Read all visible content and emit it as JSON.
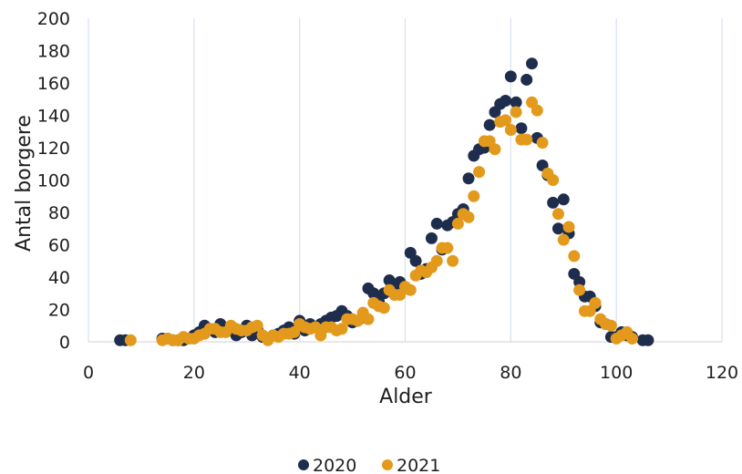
{
  "chart_data": {
    "type": "scatter",
    "title": "",
    "xlabel": "Alder",
    "ylabel": "Antal borgere",
    "xlim": [
      0,
      120
    ],
    "ylim": [
      0,
      200
    ],
    "x_ticks": [
      0,
      20,
      40,
      60,
      80,
      100,
      120
    ],
    "y_ticks": [
      0,
      20,
      40,
      60,
      80,
      100,
      120,
      140,
      160,
      180,
      200
    ],
    "grid": "vertical",
    "legend_position": "bottom",
    "series": [
      {
        "name": "2020",
        "color": "#1f2d4d",
        "points": [
          [
            6,
            1
          ],
          [
            7,
            1
          ],
          [
            14,
            2
          ],
          [
            15,
            2
          ],
          [
            16,
            1
          ],
          [
            17,
            1
          ],
          [
            18,
            1
          ],
          [
            19,
            2
          ],
          [
            20,
            4
          ],
          [
            21,
            6
          ],
          [
            22,
            10
          ],
          [
            23,
            8
          ],
          [
            24,
            6
          ],
          [
            25,
            11
          ],
          [
            26,
            8
          ],
          [
            27,
            7
          ],
          [
            28,
            4
          ],
          [
            29,
            6
          ],
          [
            30,
            10
          ],
          [
            31,
            4
          ],
          [
            32,
            8
          ],
          [
            33,
            3
          ],
          [
            34,
            2
          ],
          [
            35,
            4
          ],
          [
            36,
            5
          ],
          [
            37,
            7
          ],
          [
            38,
            9
          ],
          [
            39,
            5
          ],
          [
            40,
            13
          ],
          [
            41,
            7
          ],
          [
            42,
            11
          ],
          [
            43,
            9
          ],
          [
            44,
            11
          ],
          [
            45,
            13
          ],
          [
            46,
            15
          ],
          [
            47,
            16
          ],
          [
            48,
            19
          ],
          [
            49,
            16
          ],
          [
            50,
            12
          ],
          [
            51,
            13
          ],
          [
            52,
            15
          ],
          [
            53,
            33
          ],
          [
            54,
            30
          ],
          [
            55,
            25
          ],
          [
            56,
            30
          ],
          [
            57,
            38
          ],
          [
            58,
            33
          ],
          [
            59,
            37
          ],
          [
            60,
            33
          ],
          [
            61,
            55
          ],
          [
            62,
            50
          ],
          [
            63,
            42
          ],
          [
            64,
            45
          ],
          [
            65,
            64
          ],
          [
            66,
            73
          ],
          [
            67,
            57
          ],
          [
            68,
            72
          ],
          [
            69,
            74
          ],
          [
            70,
            79
          ],
          [
            71,
            82
          ],
          [
            72,
            101
          ],
          [
            73,
            115
          ],
          [
            74,
            119
          ],
          [
            75,
            120
          ],
          [
            76,
            134
          ],
          [
            77,
            142
          ],
          [
            78,
            147
          ],
          [
            79,
            149
          ],
          [
            80,
            164
          ],
          [
            81,
            148
          ],
          [
            82,
            132
          ],
          [
            83,
            162
          ],
          [
            84,
            172
          ],
          [
            85,
            126
          ],
          [
            86,
            109
          ],
          [
            87,
            103
          ],
          [
            88,
            86
          ],
          [
            89,
            70
          ],
          [
            90,
            88
          ],
          [
            91,
            67
          ],
          [
            92,
            42
          ],
          [
            93,
            37
          ],
          [
            94,
            28
          ],
          [
            95,
            28
          ],
          [
            96,
            22
          ],
          [
            97,
            12
          ],
          [
            98,
            11
          ],
          [
            99,
            3
          ],
          [
            100,
            3
          ],
          [
            101,
            6
          ],
          [
            102,
            4
          ],
          [
            103,
            3
          ],
          [
            105,
            1
          ],
          [
            106,
            1
          ]
        ]
      },
      {
        "name": "2021",
        "color": "#e39a1c",
        "points": [
          [
            8,
            1
          ],
          [
            14,
            1
          ],
          [
            15,
            2
          ],
          [
            16,
            1
          ],
          [
            17,
            1
          ],
          [
            18,
            3
          ],
          [
            19,
            2
          ],
          [
            20,
            2
          ],
          [
            21,
            4
          ],
          [
            22,
            5
          ],
          [
            23,
            8
          ],
          [
            24,
            8
          ],
          [
            25,
            6
          ],
          [
            26,
            6
          ],
          [
            27,
            10
          ],
          [
            28,
            8
          ],
          [
            29,
            7
          ],
          [
            30,
            7
          ],
          [
            31,
            9
          ],
          [
            32,
            10
          ],
          [
            33,
            4
          ],
          [
            34,
            1
          ],
          [
            35,
            4
          ],
          [
            36,
            3
          ],
          [
            37,
            5
          ],
          [
            38,
            5
          ],
          [
            39,
            6
          ],
          [
            40,
            11
          ],
          [
            41,
            9
          ],
          [
            42,
            8
          ],
          [
            43,
            9
          ],
          [
            44,
            4
          ],
          [
            45,
            9
          ],
          [
            46,
            9
          ],
          [
            47,
            7
          ],
          [
            48,
            8
          ],
          [
            49,
            14
          ],
          [
            50,
            14
          ],
          [
            51,
            13
          ],
          [
            52,
            18
          ],
          [
            53,
            14
          ],
          [
            54,
            24
          ],
          [
            55,
            22
          ],
          [
            56,
            21
          ],
          [
            57,
            32
          ],
          [
            58,
            29
          ],
          [
            59,
            29
          ],
          [
            60,
            34
          ],
          [
            61,
            32
          ],
          [
            62,
            41
          ],
          [
            63,
            44
          ],
          [
            64,
            43
          ],
          [
            65,
            46
          ],
          [
            66,
            50
          ],
          [
            67,
            58
          ],
          [
            68,
            58
          ],
          [
            69,
            50
          ],
          [
            70,
            73
          ],
          [
            71,
            79
          ],
          [
            72,
            77
          ],
          [
            73,
            90
          ],
          [
            74,
            105
          ],
          [
            75,
            124
          ],
          [
            76,
            124
          ],
          [
            77,
            119
          ],
          [
            78,
            136
          ],
          [
            79,
            137
          ],
          [
            80,
            131
          ],
          [
            81,
            142
          ],
          [
            82,
            125
          ],
          [
            83,
            125
          ],
          [
            84,
            148
          ],
          [
            85,
            143
          ],
          [
            86,
            123
          ],
          [
            87,
            104
          ],
          [
            88,
            100
          ],
          [
            89,
            79
          ],
          [
            90,
            63
          ],
          [
            91,
            71
          ],
          [
            92,
            53
          ],
          [
            93,
            32
          ],
          [
            94,
            19
          ],
          [
            95,
            19
          ],
          [
            96,
            24
          ],
          [
            97,
            14
          ],
          [
            98,
            11
          ],
          [
            99,
            10
          ],
          [
            100,
            2
          ],
          [
            101,
            4
          ],
          [
            102,
            6
          ],
          [
            103,
            2
          ]
        ]
      }
    ]
  }
}
